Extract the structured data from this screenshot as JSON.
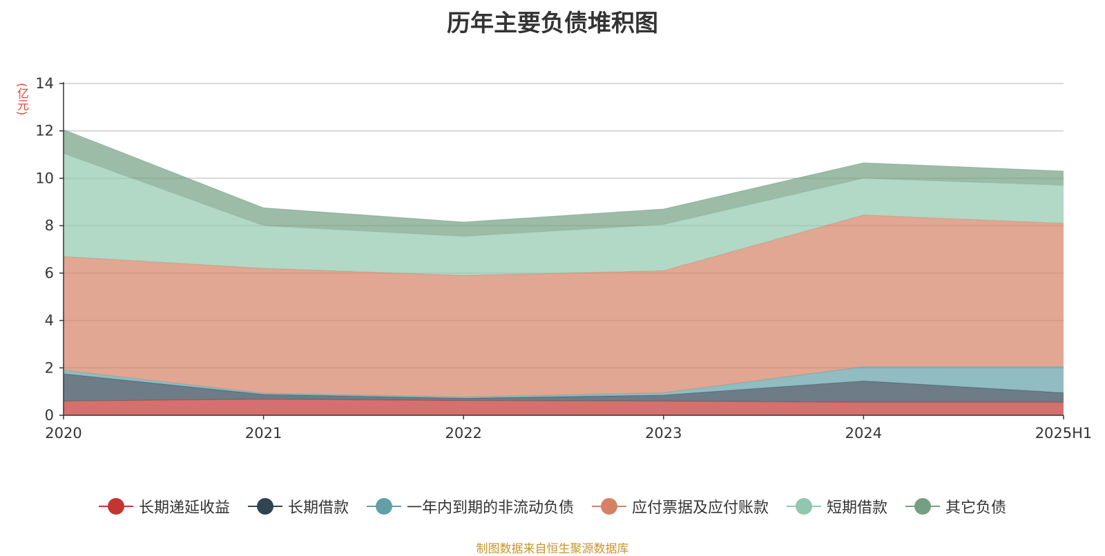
{
  "chart_data": {
    "type": "area",
    "stacked": true,
    "title": "历年主要负债堆积图",
    "ylabel": "(亿元)",
    "xlabel": "",
    "categories": [
      "2020",
      "2021",
      "2022",
      "2023",
      "2024",
      "2025H1"
    ],
    "ylim": [
      0,
      14
    ],
    "yticks": [
      0,
      2,
      4,
      6,
      8,
      10,
      12,
      14
    ],
    "grid": true,
    "legend_position": "bottom",
    "series": [
      {
        "name": "长期递延收益",
        "color": "#c23531",
        "values": [
          0.6,
          0.68,
          0.62,
          0.6,
          0.55,
          0.55
        ]
      },
      {
        "name": "长期借款",
        "color": "#2f4554",
        "values": [
          1.15,
          0.2,
          0.1,
          0.25,
          0.9,
          0.4
        ]
      },
      {
        "name": "一年内到期的非流动负债",
        "color": "#61a0a8",
        "values": [
          0.15,
          0.05,
          0.05,
          0.1,
          0.6,
          1.1
        ]
      },
      {
        "name": "应付票据及应付账款",
        "color": "#d48265",
        "values": [
          4.8,
          5.27,
          5.13,
          5.15,
          6.4,
          6.05
        ]
      },
      {
        "name": "短期借款",
        "color": "#91c7ae",
        "values": [
          4.35,
          1.8,
          1.65,
          1.95,
          1.55,
          1.6
        ]
      },
      {
        "name": "其它负债",
        "color": "#749f83",
        "values": [
          1.0,
          0.75,
          0.6,
          0.65,
          0.65,
          0.6
        ]
      }
    ]
  },
  "source_note": "制图数据来自恒生聚源数据库"
}
